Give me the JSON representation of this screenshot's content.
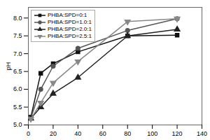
{
  "chart_data": {
    "type": "line",
    "x": [
      2,
      10,
      20,
      40,
      80,
      120
    ],
    "series": [
      {
        "name": "PHBA:SPD=0:1",
        "color": "#111111",
        "marker": "square",
        "line_style": "solid",
        "values": [
          5.22,
          6.45,
          6.72,
          7.05,
          7.5,
          7.52
        ]
      },
      {
        "name": "PHBA:SPD=1.0:1",
        "color": "#555555",
        "marker": "circle",
        "line_style": "solid",
        "values": [
          5.2,
          6.0,
          6.65,
          7.15,
          7.65,
          7.98
        ]
      },
      {
        "name": "PHBA:SPD=2.0:1",
        "color": "#222222",
        "marker": "triangle-up",
        "line_style": "solid",
        "values": [
          5.18,
          5.5,
          5.88,
          6.33,
          7.5,
          7.68
        ]
      },
      {
        "name": "PHBA:SPD=2.5:1",
        "color": "#888888",
        "marker": "triangle-down",
        "line_style": "solid",
        "values": [
          5.17,
          5.62,
          6.18,
          6.78,
          7.9,
          7.98
        ]
      }
    ],
    "y_label": "pH",
    "xlim": [
      0,
      140
    ],
    "ylim": [
      5.0,
      8.3
    ],
    "xticks": [
      0,
      20,
      40,
      60,
      80,
      100,
      120,
      140
    ],
    "yticks": [
      {
        "value": 5.0,
        "label": "5.0"
      },
      {
        "value": 5.5,
        "label": "5.5"
      },
      {
        "value": 6.0,
        "label": "6.0"
      },
      {
        "value": 6.5,
        "label": "6.5"
      },
      {
        "value": 7.0,
        "label": "7.0"
      },
      {
        "value": 7.5,
        "label": "7.5"
      },
      {
        "value": 8.0,
        "label": "8.0"
      }
    ],
    "grid": false,
    "legend": "upper left"
  }
}
